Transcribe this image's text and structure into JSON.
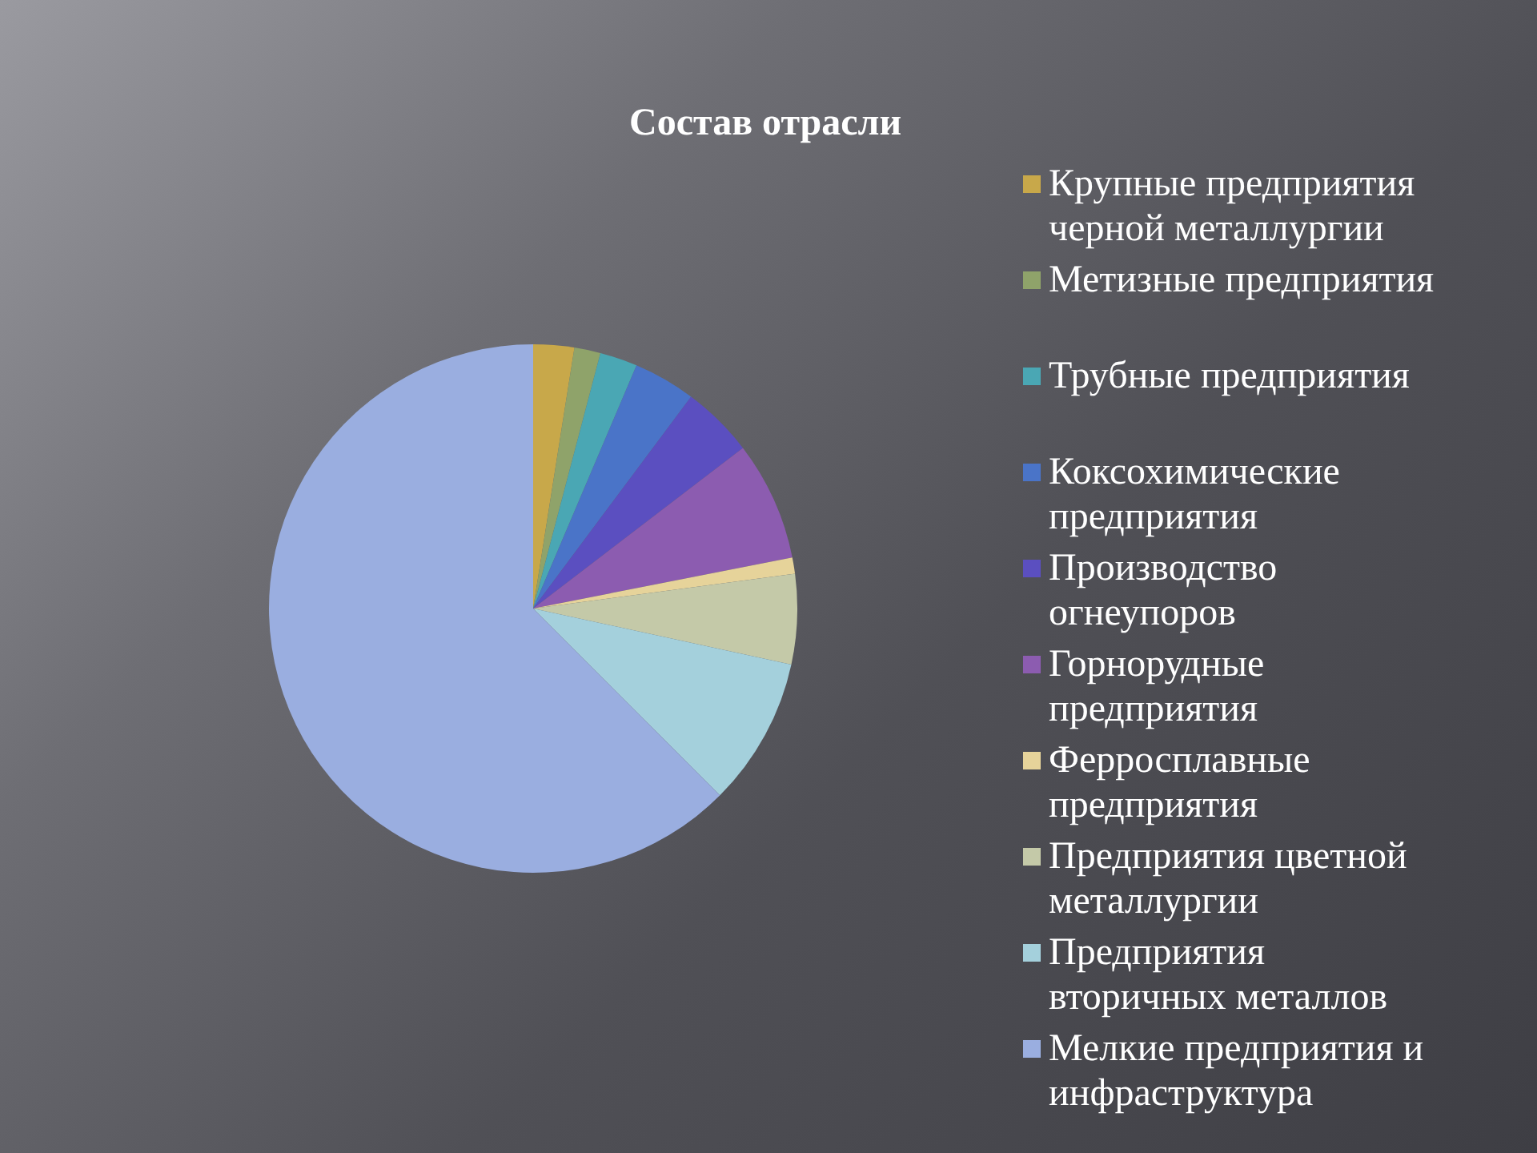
{
  "chart_data": {
    "type": "pie",
    "title": "Состав отрасли",
    "categories": [
      "Крупные предприятия черной металлургии",
      "Метизные предприятия",
      "Трубные предприятия",
      "Коксохимические предприятия",
      "Производство огнеупоров",
      "Горнорудные предприятия",
      "Ферросплавные предприятия",
      "Предприятия цветной металлургии",
      "Предприятия вторичных металлов",
      "Мелкие предприятия и инфраструктура"
    ],
    "values": [
      2.5,
      1.6,
      2.3,
      3.8,
      4.4,
      7.3,
      1.0,
      5.5,
      9.1,
      62.5
    ],
    "colors": [
      "#c8a84a",
      "#8fa36a",
      "#4aa7b4",
      "#4a74c8",
      "#5b4fc0",
      "#8c5cb0",
      "#e6d39a",
      "#c4c9a8",
      "#a4d0dc",
      "#9aaee0"
    ],
    "legend": "right"
  }
}
